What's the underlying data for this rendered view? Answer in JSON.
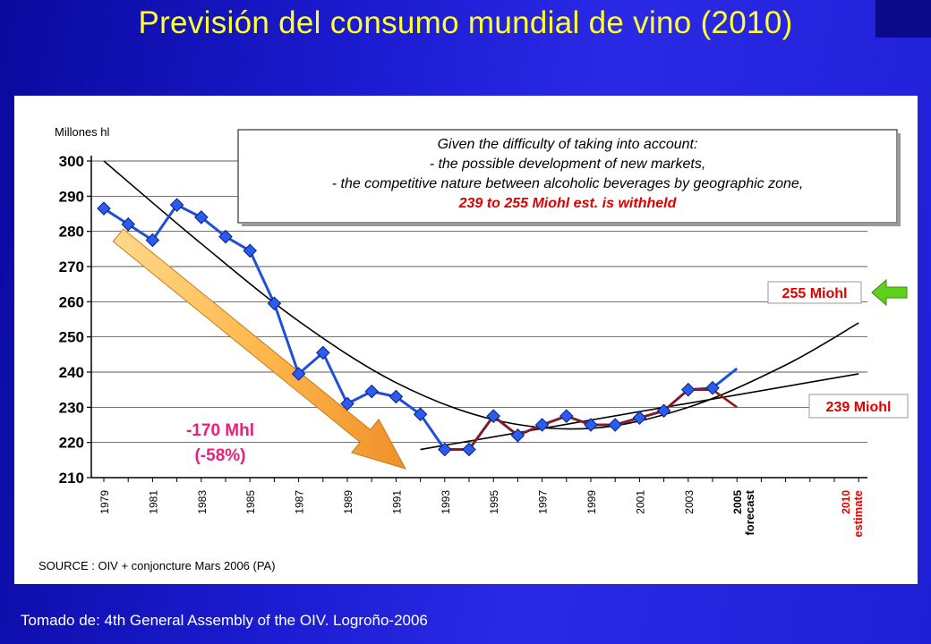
{
  "slide": {
    "title": "Previsión del consumo mundial de vino (2010)",
    "footer": "Tomado de: 4th General Assembly of the OIV. Logroño-2006",
    "title_color": "#ffff33",
    "background_color": "#1b1bd0"
  },
  "chart_data": {
    "type": "line",
    "ylabel": "Millones hl",
    "ylim": [
      210,
      300
    ],
    "yticks": [
      210,
      220,
      230,
      240,
      250,
      260,
      270,
      280,
      290,
      300
    ],
    "grid": true,
    "x_tick_labels": [
      "1979",
      "1981",
      "1983",
      "1985",
      "1987",
      "1989",
      "1991",
      "1993",
      "1995",
      "1997",
      "1999",
      "2001",
      "2003"
    ],
    "x_tick_label_2005": "2005",
    "x_tick_label_2005_note": "forecast",
    "x_tick_label_2010": "2010",
    "x_tick_label_2010_note": "estimate",
    "series": [
      {
        "color": "#1e4fd8",
        "x": [
          1979,
          1980,
          1981,
          1982,
          1983,
          1984,
          1985,
          1986,
          1987,
          1988,
          1989,
          1990,
          1991,
          1992,
          1993,
          1994,
          1995,
          1996,
          1997,
          1998,
          1999,
          2000,
          2001,
          2002,
          2003,
          2004,
          2005
        ],
        "y": [
          286.5,
          282,
          277.5,
          287.5,
          284,
          278.5,
          274.5,
          259.5,
          239.5,
          245.5,
          231,
          234.5,
          233,
          228,
          218,
          218,
          227.5,
          222,
          225,
          227.5,
          225,
          225,
          227,
          229,
          235,
          235.5,
          241
        ]
      },
      {
        "color": "#8b1a1a",
        "x": [
          1993,
          1994,
          1995,
          1996,
          1997,
          1998,
          1999,
          2000,
          2001,
          2002,
          2003,
          2004,
          2005
        ],
        "y": [
          218,
          218,
          227.5,
          222,
          225,
          227.5,
          225,
          225,
          227,
          229,
          235,
          235,
          230
        ]
      }
    ],
    "trend_curves": [
      {
        "type": "polynomial",
        "x": [
          1979,
          1983,
          1987,
          1991,
          1995,
          1999,
          2003,
          2007,
          2010
        ],
        "y": [
          300,
          276.5,
          254.5,
          237,
          226.5,
          224,
          230,
          242,
          254
        ]
      },
      {
        "type": "linear",
        "x": [
          1992,
          2010
        ],
        "y": [
          218,
          239.5
        ]
      }
    ],
    "annotations": {
      "message_line1": "Given the difficulty of taking into account:",
      "message_line2": "- the possible development of new markets,",
      "message_line3": "- the competitive nature between alcoholic beverages by geographic zone,",
      "message_line4": "239 to 255 Miohl est. is withheld",
      "high_estimate": "255 Miohl",
      "low_estimate": "239 Miohl",
      "decline_value": "-170 Mhl",
      "decline_pct": "(-58%)",
      "source": "SOURCE : OIV + conjoncture Mars 2006 (PA)"
    }
  }
}
